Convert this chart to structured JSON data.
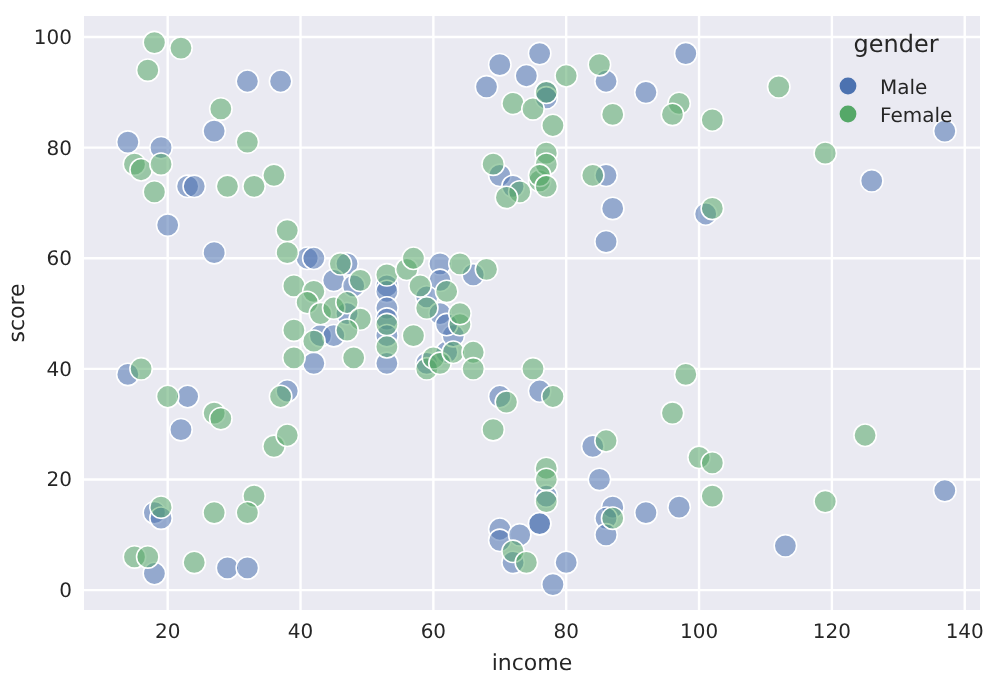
{
  "chart_data": {
    "type": "scatter",
    "xlabel": "income",
    "ylabel": "score",
    "legend_title": "gender",
    "legend": "top right",
    "grid": true,
    "marker": "circle",
    "xlim": [
      7.4,
      142.3
    ],
    "ylim": [
      -3.6,
      103.8
    ],
    "xticks": [
      20,
      40,
      60,
      80,
      100,
      120,
      140
    ],
    "yticks": [
      0,
      20,
      40,
      60,
      80,
      100
    ],
    "series": [
      {
        "name": "Male",
        "color": "#4c72b0",
        "x": [
          32,
          37,
          14,
          19,
          27,
          23,
          24,
          20,
          27,
          70,
          68,
          74,
          76,
          70,
          72,
          77,
          77,
          86,
          92,
          98,
          137,
          126,
          86,
          87,
          86,
          101,
          41,
          42,
          47,
          45,
          48,
          53,
          53,
          61,
          61,
          66,
          59,
          47,
          43,
          45,
          42,
          53,
          53,
          53,
          53,
          59,
          62,
          63,
          61,
          62,
          76,
          14,
          23,
          22,
          38,
          70,
          18,
          19,
          18,
          29,
          32,
          70,
          70,
          73,
          72,
          76,
          84,
          77,
          85,
          137,
          113,
          97,
          92,
          87,
          86,
          86,
          76,
          80,
          78
        ],
        "values": [
          92,
          92,
          81,
          80,
          83,
          73,
          73,
          66,
          61,
          95,
          91,
          93,
          97,
          75,
          73,
          90,
          89,
          92,
          90,
          97,
          83,
          74,
          75,
          69,
          63,
          68,
          60,
          60,
          59,
          56,
          55,
          55,
          54,
          59,
          56,
          57,
          53,
          50,
          46,
          46,
          41,
          51,
          49,
          46,
          41,
          41,
          43,
          46,
          50,
          48,
          36,
          39,
          35,
          29,
          36,
          35,
          14,
          13,
          3,
          4,
          4,
          11,
          9,
          10,
          5,
          12,
          26,
          17,
          20,
          18,
          8,
          15,
          14,
          15,
          13,
          10,
          12,
          5,
          1
        ]
      },
      {
        "name": "Female",
        "color": "#55a868",
        "x": [
          18,
          22,
          17,
          28,
          15,
          16,
          19,
          32,
          18,
          29,
          33,
          36,
          38,
          38,
          72,
          75,
          69,
          73,
          71,
          76,
          77,
          80,
          85,
          87,
          78,
          97,
          96,
          102,
          112,
          119,
          77,
          77,
          76,
          77,
          84,
          102,
          46,
          39,
          42,
          49,
          53,
          56,
          57,
          58,
          62,
          64,
          68,
          41,
          43,
          45,
          47,
          49,
          47,
          39,
          42,
          39,
          48,
          53,
          53,
          57,
          59,
          60,
          61,
          63,
          66,
          66,
          64,
          59,
          64,
          75,
          16,
          20,
          27,
          28,
          36,
          38,
          37,
          71,
          69,
          33,
          19,
          27,
          32,
          15,
          17,
          24,
          72,
          74,
          78,
          98,
          96,
          86,
          77,
          77,
          77,
          100,
          102,
          102,
          125,
          119,
          87
        ],
        "values": [
          99,
          98,
          94,
          87,
          77,
          76,
          77,
          81,
          72,
          73,
          73,
          75,
          65,
          61,
          88,
          87,
          77,
          72,
          71,
          74,
          90,
          93,
          95,
          86,
          84,
          88,
          86,
          85,
          91,
          79,
          79,
          77,
          75,
          73,
          75,
          69,
          59,
          55,
          54,
          56,
          57,
          58,
          60,
          55,
          54,
          59,
          58,
          52,
          50,
          51,
          52,
          49,
          47,
          47,
          45,
          42,
          42,
          48,
          44,
          46,
          40,
          42,
          41,
          43,
          43,
          40,
          48,
          51,
          50,
          40,
          40,
          35,
          32,
          31,
          26,
          28,
          35,
          34,
          29,
          17,
          15,
          14,
          14,
          6,
          6,
          5,
          7,
          5,
          35,
          39,
          32,
          27,
          22,
          20,
          16,
          24,
          23,
          17,
          28,
          16,
          13
        ]
      }
    ]
  }
}
